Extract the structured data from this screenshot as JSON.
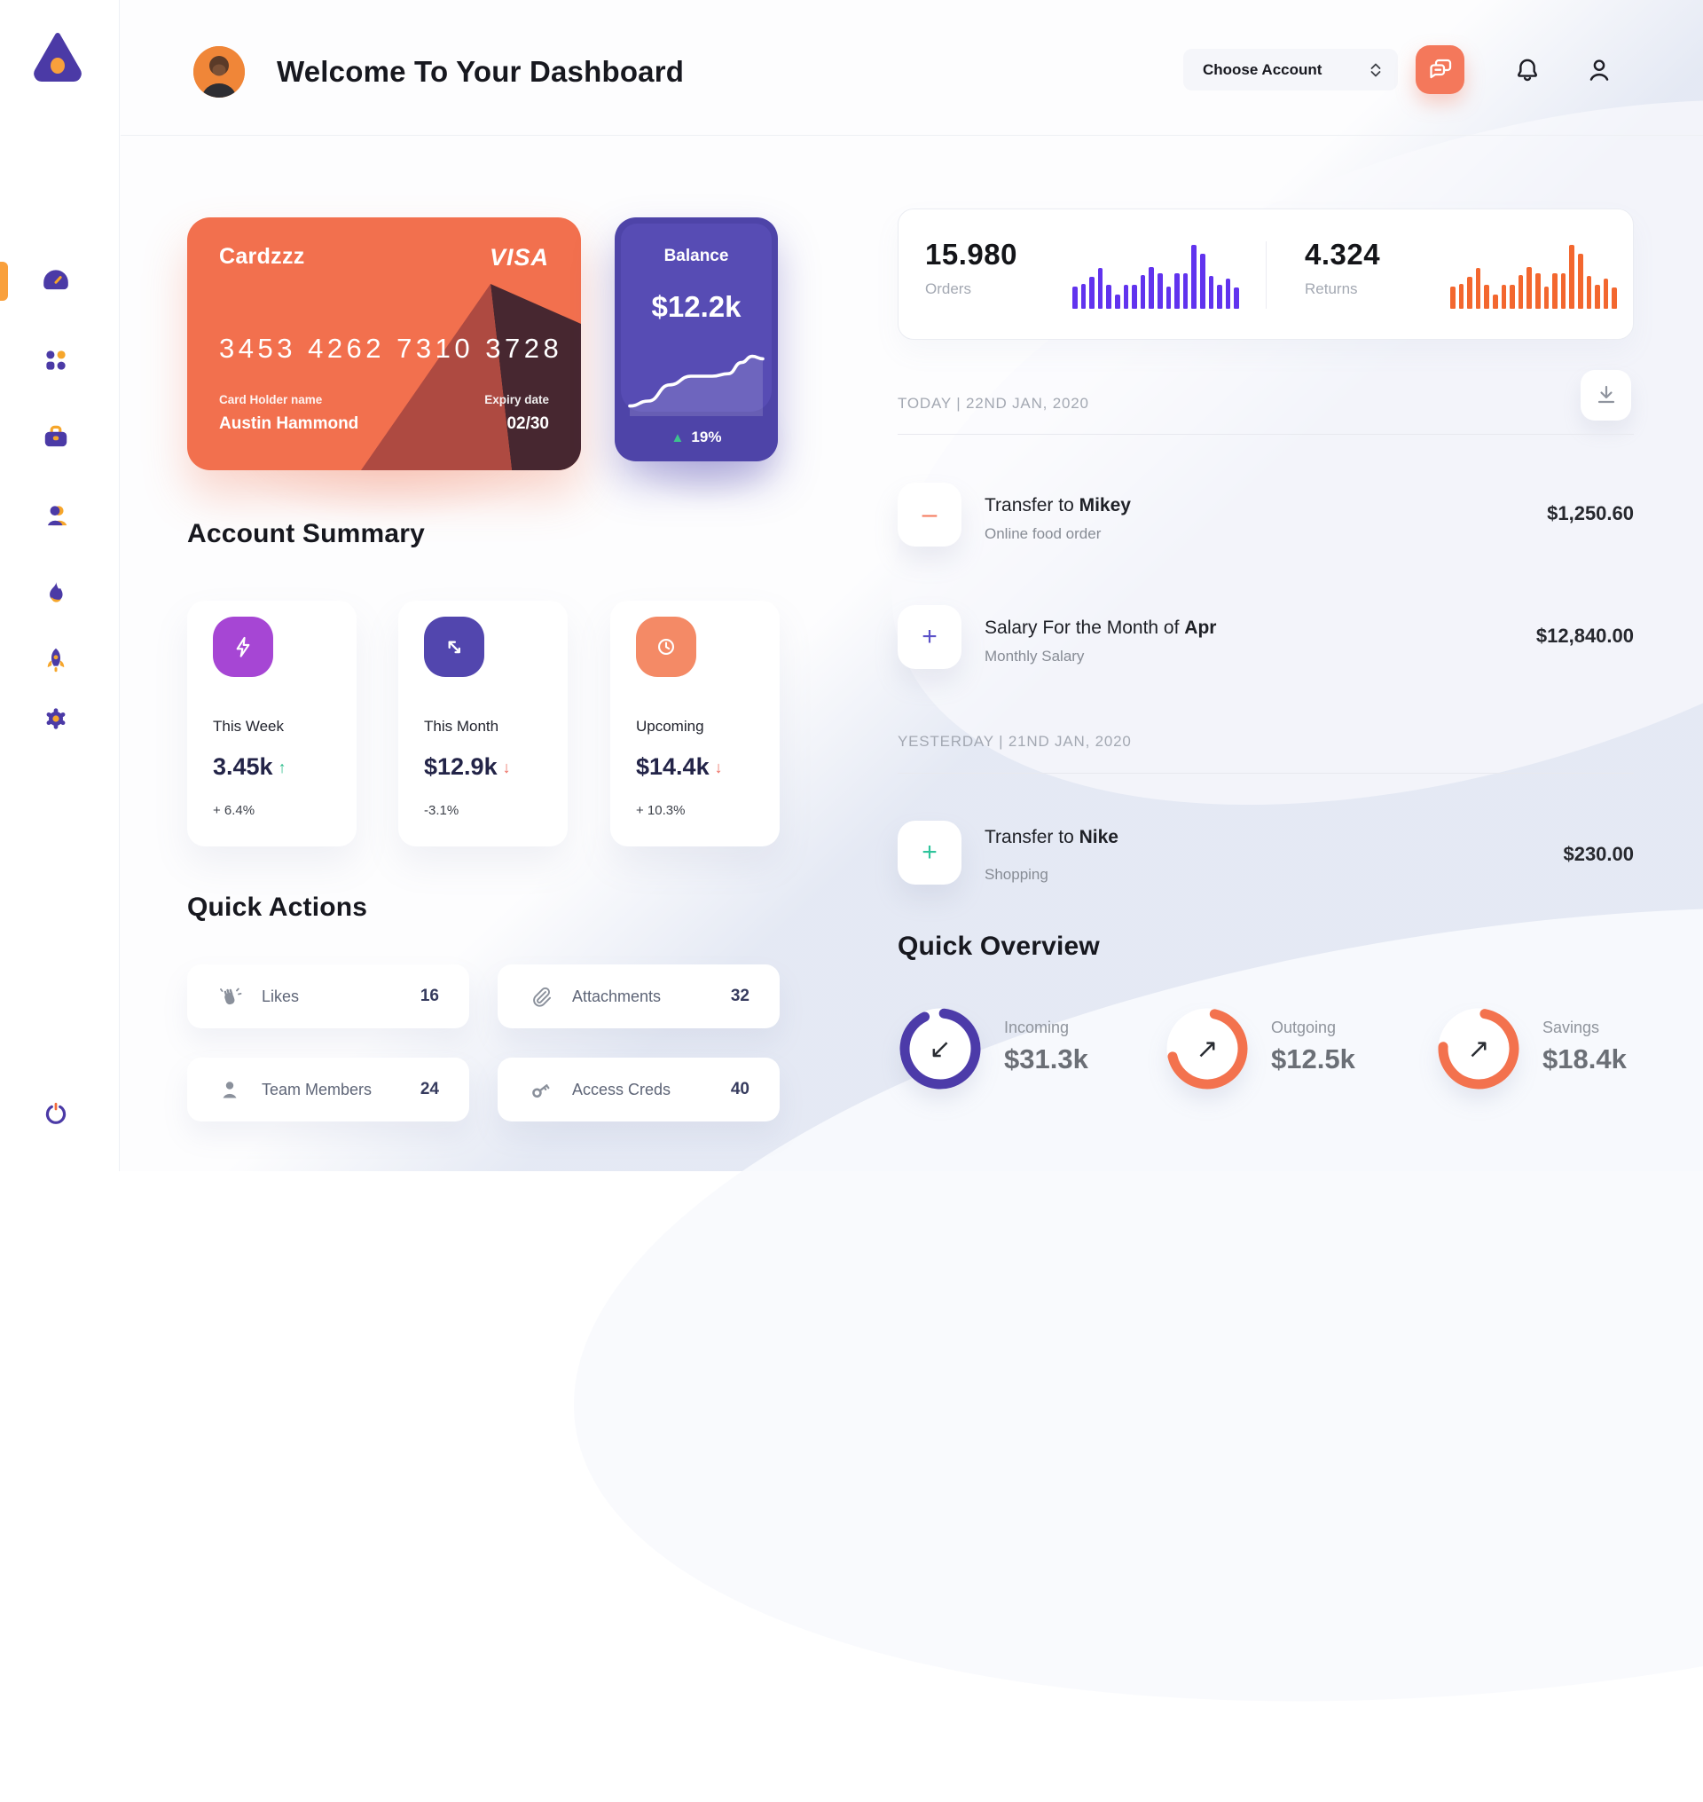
{
  "header": {
    "title": "Welcome To Your Dashboard",
    "account_selector_label": "Choose Account"
  },
  "sidebar": {
    "items": [
      {
        "icon": "gauge-icon",
        "active": true
      },
      {
        "icon": "apps-icon",
        "active": false
      },
      {
        "icon": "briefcase-icon",
        "active": false
      },
      {
        "icon": "users-icon",
        "active": false
      },
      {
        "icon": "flame-icon",
        "active": false
      },
      {
        "icon": "rocket-icon",
        "active": false
      },
      {
        "icon": "gear-icon",
        "active": false
      }
    ],
    "power_icon": "power-icon"
  },
  "credit_card": {
    "name": "Cardzzz",
    "brand": "VISA",
    "number": "3453 4262 7310 3728",
    "holder_label": "Card Holder name",
    "holder": "Austin Hammond",
    "expiry_label": "Expiry date",
    "expiry": "02/30"
  },
  "balance": {
    "label": "Balance",
    "value": "$12.2k",
    "change": "19%",
    "change_arrow": "▲"
  },
  "account_summary": {
    "title": "Account Summary",
    "cards": [
      {
        "label": "This Week",
        "value": "3.45k",
        "arrow": "↑",
        "trend": "up",
        "delta": "+ 6.4%",
        "icon": "bolt-icon",
        "icon_bg": "#A646D4"
      },
      {
        "label": "This Month",
        "value": "$12.9k",
        "arrow": "↓",
        "trend": "down",
        "delta": "-3.1%",
        "icon": "transfer-arrows-icon",
        "icon_bg": "#5246AE"
      },
      {
        "label": "Upcoming",
        "value": "$14.4k",
        "arrow": "↓",
        "trend": "down",
        "delta": "+ 10.3%",
        "icon": "clock-icon",
        "icon_bg": "#F48A66"
      }
    ]
  },
  "quick_actions": {
    "title": "Quick Actions",
    "items": [
      {
        "label": "Likes",
        "count": "16",
        "icon": "clap-icon"
      },
      {
        "label": "Attachments",
        "count": "32",
        "icon": "paperclip-icon"
      },
      {
        "label": "Team Members",
        "count": "24",
        "icon": "member-icon"
      },
      {
        "label": "Access Creds",
        "count": "40",
        "icon": "key-icon"
      }
    ]
  },
  "stats": {
    "orders": {
      "value": "15.980",
      "label": "Orders"
    },
    "returns": {
      "value": "4.324",
      "label": "Returns"
    }
  },
  "transactions": {
    "today_header": "TODAY | 22ND JAN, 2020",
    "yesterday_header": "YESTERDAY | 21ND JAN, 2020",
    "rows": [
      {
        "title_prefix": "Transfer to ",
        "title_bold": "Mikey",
        "subtitle": "Online food order",
        "amount": "$1,250.60",
        "sign": "–",
        "accent": "#F4785B",
        "group": "today"
      },
      {
        "title_prefix": "Salary For the Month of ",
        "title_bold": "Apr",
        "subtitle": "Monthly Salary",
        "amount": "$12,840.00",
        "sign": "+",
        "accent": "#5B51C8",
        "group": "today"
      },
      {
        "title_prefix": "Transfer to ",
        "title_bold": "Nike",
        "subtitle": "Shopping",
        "amount": "$230.00",
        "sign": "+",
        "accent": "#2EC49B",
        "group": "yesterday"
      }
    ]
  },
  "quick_overview": {
    "title": "Quick Overview",
    "items": [
      {
        "label": "Incoming",
        "value": "$31.3k",
        "pct": 91,
        "color": "#4C3BA9",
        "direction_glyph": "↙"
      },
      {
        "label": "Outgoing",
        "value": "$12.5k",
        "pct": 68,
        "color": "#F3724E",
        "direction_glyph": "↗"
      },
      {
        "label": "Savings",
        "value": "$18.4k",
        "pct": 73,
        "color": "#F3724E",
        "direction_glyph": "↗"
      }
    ]
  },
  "chart_data": [
    {
      "id": "orders-spark",
      "type": "bar",
      "title": "Orders activity sparkline",
      "color": "#6133EE",
      "ylim": [
        0,
        1
      ],
      "values": [
        0.34,
        0.38,
        0.48,
        0.62,
        0.36,
        0.22,
        0.36,
        0.36,
        0.52,
        0.64,
        0.54,
        0.34,
        0.54,
        0.54,
        0.97,
        0.84,
        0.5,
        0.36,
        0.46,
        0.33
      ]
    },
    {
      "id": "returns-spark",
      "type": "bar",
      "title": "Returns activity sparkline",
      "color": "#F3672F",
      "ylim": [
        0,
        1
      ],
      "values": [
        0.34,
        0.38,
        0.48,
        0.62,
        0.36,
        0.22,
        0.36,
        0.36,
        0.52,
        0.64,
        0.54,
        0.34,
        0.54,
        0.54,
        0.97,
        0.84,
        0.5,
        0.36,
        0.46,
        0.33
      ]
    },
    {
      "id": "balance-trend",
      "type": "line",
      "title": "Balance trend",
      "color": "#FFFFFF",
      "xlim": [
        0,
        100
      ],
      "ylim": [
        0,
        100
      ],
      "points": [
        [
          0,
          12
        ],
        [
          14,
          20
        ],
        [
          30,
          46
        ],
        [
          46,
          60
        ],
        [
          62,
          60
        ],
        [
          74,
          64
        ],
        [
          84,
          82
        ],
        [
          92,
          92
        ],
        [
          100,
          88
        ]
      ]
    },
    {
      "id": "overview-donuts",
      "type": "pie",
      "categories": [
        "Incoming",
        "Outgoing",
        "Savings"
      ],
      "values": [
        91,
        68,
        73
      ],
      "colors": [
        "#4C3BA9",
        "#F3724E",
        "#F3724E"
      ]
    }
  ]
}
